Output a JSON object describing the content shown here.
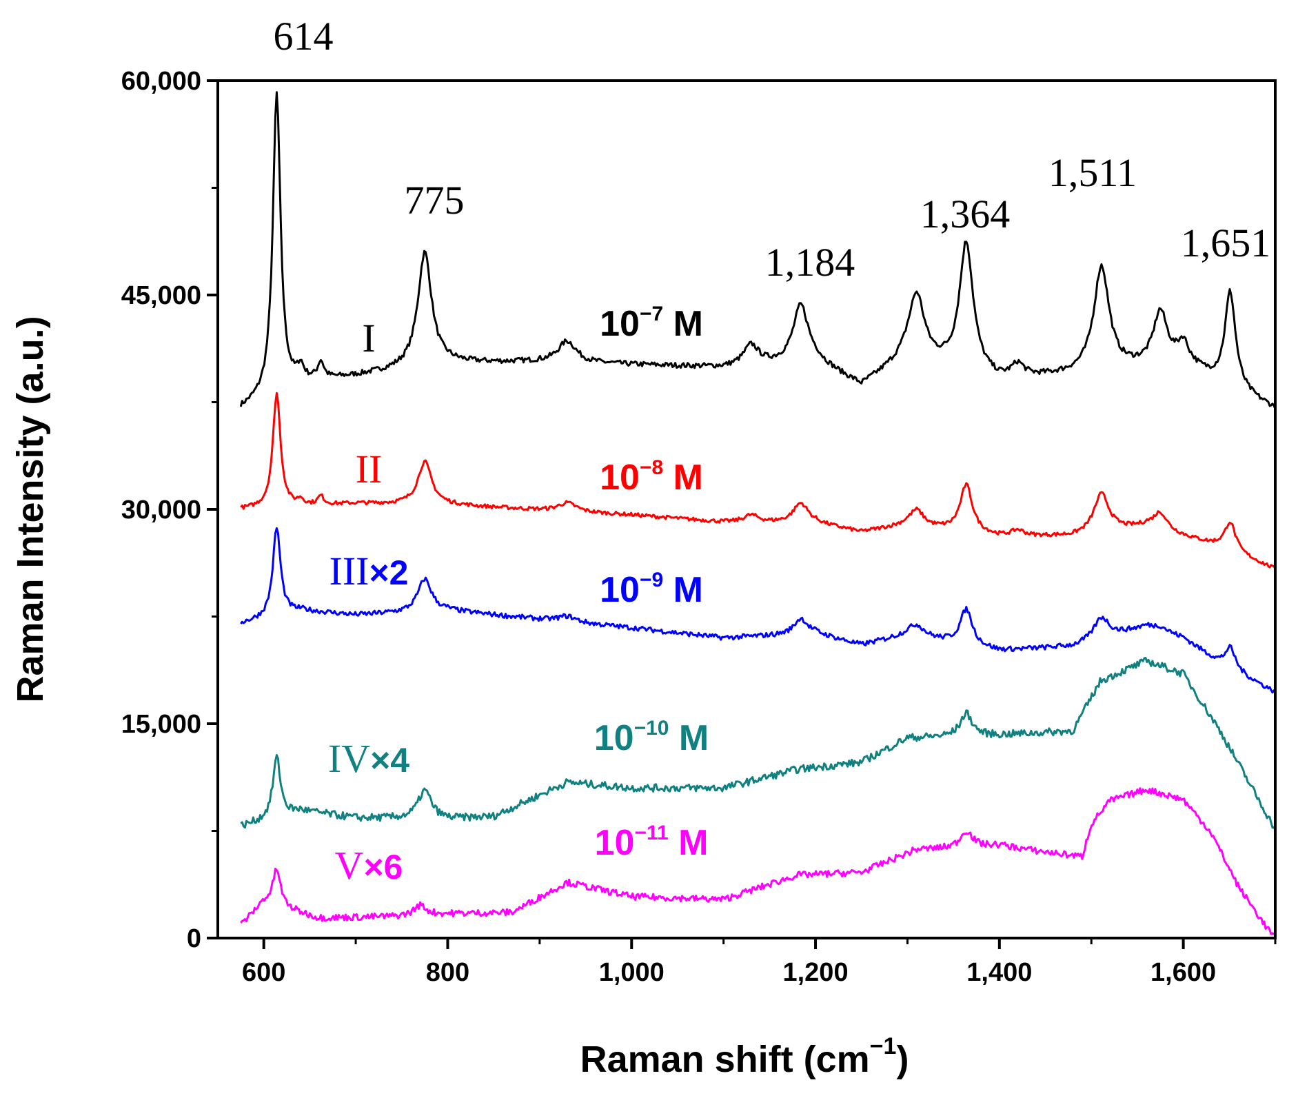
{
  "chart_data": {
    "type": "line",
    "xlabel": "Raman shift (cm",
    "xlabel_sup": "−1",
    "xlabel_close": ")",
    "ylabel": "Raman Intensity (a.u.)",
    "xlim": [
      550,
      1700
    ],
    "ylim": [
      0,
      60000
    ],
    "x_ticks": [
      600,
      800,
      1000,
      1200,
      1400,
      1600
    ],
    "x_tick_labels": [
      "600",
      "800",
      "1,000",
      "1,200",
      "1,400",
      "1,600"
    ],
    "y_ticks": [
      0,
      15000,
      30000,
      45000,
      60000
    ],
    "y_tick_labels": [
      "0",
      "15,000",
      "30,000",
      "45,000",
      "60,000"
    ],
    "peak_labels": [
      {
        "x": 614,
        "text": "614"
      },
      {
        "x": 775,
        "text": "775"
      },
      {
        "x": 1184,
        "text": "1,184"
      },
      {
        "x": 1364,
        "text": "1,364"
      },
      {
        "x": 1511,
        "text": "1,511"
      },
      {
        "x": 1651,
        "text": "1,651"
      }
    ],
    "series": [
      {
        "name": "I",
        "multiplier": "",
        "concentration": "10",
        "exponent": "−7",
        "unit": " M",
        "color": "#000000",
        "baseline": [
          [
            575,
            37000
          ],
          [
            640,
            38800
          ],
          [
            700,
            39300
          ],
          [
            800,
            40200
          ],
          [
            900,
            40300
          ],
          [
            1000,
            40100
          ],
          [
            1100,
            39900
          ],
          [
            1200,
            40300
          ],
          [
            1250,
            38600
          ],
          [
            1300,
            40600
          ],
          [
            1400,
            39000
          ],
          [
            1480,
            39400
          ],
          [
            1600,
            40300
          ],
          [
            1640,
            38800
          ],
          [
            1700,
            37000
          ]
        ],
        "peaks": [
          [
            614,
            21000,
            5
          ],
          [
            640,
            900,
            4
          ],
          [
            662,
            1200,
            4
          ],
          [
            775,
            8000,
            9
          ],
          [
            930,
            1500,
            12
          ],
          [
            1130,
            1400,
            10
          ],
          [
            1184,
            4000,
            10
          ],
          [
            1310,
            4500,
            10
          ],
          [
            1364,
            9000,
            9
          ],
          [
            1420,
            900,
            8
          ],
          [
            1511,
            7300,
            10
          ],
          [
            1575,
            3600,
            9
          ],
          [
            1600,
            1200,
            7
          ],
          [
            1651,
            6700,
            7
          ]
        ]
      },
      {
        "name": "II",
        "multiplier": "",
        "concentration": "10",
        "exponent": "−8",
        "unit": " M",
        "color": "#ff0000",
        "baseline": [
          [
            575,
            30000
          ],
          [
            700,
            30400
          ],
          [
            800,
            30300
          ],
          [
            1000,
            29600
          ],
          [
            1100,
            29100
          ],
          [
            1200,
            29000
          ],
          [
            1250,
            28400
          ],
          [
            1300,
            28900
          ],
          [
            1400,
            28100
          ],
          [
            1480,
            28100
          ],
          [
            1560,
            28800
          ],
          [
            1640,
            27400
          ],
          [
            1700,
            25800
          ]
        ],
        "peaks": [
          [
            614,
            8000,
            5
          ],
          [
            640,
            400,
            4
          ],
          [
            662,
            600,
            4
          ],
          [
            775,
            3000,
            9
          ],
          [
            930,
            600,
            12
          ],
          [
            1130,
            500,
            10
          ],
          [
            1184,
            1400,
            10
          ],
          [
            1310,
            1100,
            9
          ],
          [
            1364,
            3300,
            8
          ],
          [
            1420,
            400,
            8
          ],
          [
            1511,
            2700,
            10
          ],
          [
            1575,
            1200,
            9
          ],
          [
            1651,
            2000,
            7
          ]
        ]
      },
      {
        "name": "III",
        "multiplier": "×2",
        "concentration": "10",
        "exponent": "−9",
        "unit": " M",
        "color": "#0000ff",
        "baseline": [
          [
            575,
            22000
          ],
          [
            640,
            22900
          ],
          [
            700,
            22600
          ],
          [
            800,
            22900
          ],
          [
            900,
            22300
          ],
          [
            1000,
            21700
          ],
          [
            1100,
            21000
          ],
          [
            1200,
            21300
          ],
          [
            1250,
            20500
          ],
          [
            1300,
            21200
          ],
          [
            1400,
            20100
          ],
          [
            1480,
            20400
          ],
          [
            1560,
            21800
          ],
          [
            1600,
            21000
          ],
          [
            1640,
            19200
          ],
          [
            1700,
            17200
          ]
        ],
        "peaks": [
          [
            614,
            6200,
            5
          ],
          [
            775,
            2300,
            9
          ],
          [
            930,
            400,
            12
          ],
          [
            1184,
            1100,
            9
          ],
          [
            1310,
            800,
            10
          ],
          [
            1364,
            2500,
            8
          ],
          [
            1511,
            1500,
            10
          ],
          [
            1575,
            300,
            9
          ],
          [
            1651,
            1500,
            7
          ]
        ]
      },
      {
        "name": "IV",
        "multiplier": "×4",
        "concentration": "10",
        "exponent": "−10",
        "unit": " M",
        "color": "#108080",
        "baseline": [
          [
            575,
            7800
          ],
          [
            640,
            8900
          ],
          [
            700,
            8400
          ],
          [
            800,
            8300
          ],
          [
            850,
            8500
          ],
          [
            930,
            10900
          ],
          [
            1000,
            10500
          ],
          [
            1100,
            10500
          ],
          [
            1180,
            11800
          ],
          [
            1250,
            12300
          ],
          [
            1300,
            14000
          ],
          [
            1400,
            14200
          ],
          [
            1480,
            14500
          ],
          [
            1510,
            18000
          ],
          [
            1560,
            19400
          ],
          [
            1600,
            18500
          ],
          [
            1640,
            14500
          ],
          [
            1660,
            12200
          ],
          [
            1700,
            7600
          ]
        ],
        "peaks": [
          [
            614,
            4200,
            5
          ],
          [
            775,
            2000,
            9
          ],
          [
            1364,
            1600,
            8
          ]
        ]
      },
      {
        "name": "V",
        "multiplier": "×6",
        "concentration": "10",
        "exponent": "−11",
        "unit": " M",
        "color": "#ff00ff",
        "baseline": [
          [
            575,
            900
          ],
          [
            600,
            2500
          ],
          [
            660,
            1400
          ],
          [
            740,
            1500
          ],
          [
            800,
            1700
          ],
          [
            870,
            1800
          ],
          [
            930,
            3900
          ],
          [
            1000,
            2900
          ],
          [
            1100,
            2700
          ],
          [
            1180,
            4400
          ],
          [
            1250,
            4600
          ],
          [
            1310,
            6200
          ],
          [
            1360,
            6300
          ],
          [
            1400,
            6500
          ],
          [
            1440,
            6100
          ],
          [
            1490,
            5700
          ],
          [
            1500,
            8000
          ],
          [
            1520,
            9600
          ],
          [
            1560,
            10400
          ],
          [
            1600,
            9700
          ],
          [
            1630,
            7400
          ],
          [
            1660,
            3600
          ],
          [
            1690,
            800
          ],
          [
            1700,
            0
          ]
        ],
        "peaks": [
          [
            614,
            2600,
            5
          ],
          [
            770,
            700,
            8
          ],
          [
            1364,
            1200,
            8
          ]
        ]
      }
    ]
  }
}
